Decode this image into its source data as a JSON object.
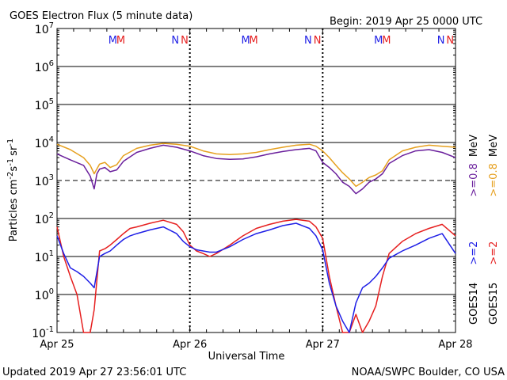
{
  "chart_data": {
    "type": "line",
    "title": "GOES Electron Flux (5 minute data)",
    "begin_label": "Begin: 2019 Apr 25 0000 UTC",
    "xlabel": "Universal Time",
    "ylabel_main": "Particles cm",
    "ylabel_exp1": "-2",
    "ylabel_mid1": "s",
    "ylabel_exp2": "-1",
    "ylabel_mid2": "sr",
    "ylabel_exp3": "-1",
    "yscale": "log",
    "ylim": [
      0.1,
      10000000
    ],
    "ytick_base": "10",
    "ytick_exps": [
      "7",
      "6",
      "5",
      "4",
      "3",
      "2",
      "1",
      "0",
      "-1"
    ],
    "x_ticks": [
      "Apr 25",
      "Apr 26",
      "Apr 27",
      "Apr 28"
    ],
    "xlim_days": [
      0,
      3
    ],
    "markers": [
      {
        "letter": "M",
        "satellite": "GOES14",
        "color": "#1f1fe6",
        "day": 0.42
      },
      {
        "letter": "M",
        "satellite": "GOES15",
        "color": "#e61f1f",
        "day": 0.48
      },
      {
        "letter": "N",
        "satellite": "GOES14",
        "color": "#1f1fe6",
        "day": 0.89
      },
      {
        "letter": "N",
        "satellite": "GOES15",
        "color": "#e61f1f",
        "day": 0.96
      },
      {
        "letter": "M",
        "satellite": "GOES14",
        "color": "#1f1fe6",
        "day": 1.42
      },
      {
        "letter": "M",
        "satellite": "GOES15",
        "color": "#e61f1f",
        "day": 1.48
      },
      {
        "letter": "N",
        "satellite": "GOES14",
        "color": "#1f1fe6",
        "day": 1.89
      },
      {
        "letter": "N",
        "satellite": "GOES15",
        "color": "#e61f1f",
        "day": 1.96
      },
      {
        "letter": "M",
        "satellite": "GOES14",
        "color": "#1f1fe6",
        "day": 2.42
      },
      {
        "letter": "M",
        "satellite": "GOES15",
        "color": "#e61f1f",
        "day": 2.48
      },
      {
        "letter": "N",
        "satellite": "GOES14",
        "color": "#1f1fe6",
        "day": 2.89
      },
      {
        "letter": "N",
        "satellite": "GOES15",
        "color": "#e61f1f",
        "day": 2.96
      }
    ],
    "legend": [
      {
        "text": "GOES14",
        "color": "#000000",
        "placement": "bottom-right"
      },
      {
        "text": ">=2",
        "color": "#1f1fe6"
      },
      {
        "text": ">=0.8",
        "color": "#6a1f9c"
      },
      {
        "text": "MeV",
        "color": "#000000"
      },
      {
        "text": "GOES15",
        "color": "#000000"
      },
      {
        "text": ">=2",
        "color": "#e61f1f"
      },
      {
        "text": ">=0.8",
        "color": "#e6a01f"
      },
      {
        "text": "MeV",
        "color": "#000000"
      }
    ],
    "series": [
      {
        "name": "GOES15 >=0.8 MeV",
        "color": "#e6a01f",
        "x": [
          0,
          0.1,
          0.2,
          0.25,
          0.28,
          0.32,
          0.36,
          0.4,
          0.45,
          0.5,
          0.6,
          0.7,
          0.8,
          0.9,
          1.0,
          1.1,
          1.2,
          1.3,
          1.4,
          1.5,
          1.6,
          1.7,
          1.8,
          1.9,
          1.95,
          2.0,
          2.05,
          2.1,
          2.15,
          2.2,
          2.25,
          2.3,
          2.35,
          2.4,
          2.45,
          2.5,
          2.6,
          2.7,
          2.8,
          2.9,
          3.0
        ],
        "y": [
          9000,
          6500,
          4000,
          2500,
          1500,
          2700,
          3000,
          2200,
          2600,
          4500,
          7000,
          8500,
          9500,
          9000,
          8000,
          6000,
          5000,
          4800,
          5000,
          5500,
          6500,
          7500,
          8500,
          9000,
          8000,
          6000,
          4000,
          2500,
          1600,
          1100,
          700,
          900,
          1200,
          1400,
          1800,
          3500,
          6000,
          7500,
          8500,
          8000,
          7500
        ]
      },
      {
        "name": "GOES14 >=0.8 MeV",
        "color": "#6a1f9c",
        "x": [
          0,
          0.1,
          0.2,
          0.25,
          0.28,
          0.3,
          0.32,
          0.36,
          0.4,
          0.45,
          0.5,
          0.6,
          0.7,
          0.8,
          0.9,
          1.0,
          1.1,
          1.2,
          1.3,
          1.4,
          1.5,
          1.6,
          1.7,
          1.8,
          1.9,
          1.95,
          2.0,
          2.05,
          2.1,
          2.15,
          2.2,
          2.25,
          2.3,
          2.35,
          2.4,
          2.45,
          2.5,
          2.6,
          2.7,
          2.8,
          2.9,
          3.0
        ],
        "y": [
          5000,
          3500,
          2500,
          1300,
          600,
          1500,
          2000,
          2200,
          1700,
          1900,
          3200,
          5500,
          7000,
          8500,
          7500,
          6000,
          4500,
          3800,
          3600,
          3700,
          4200,
          5000,
          5800,
          6500,
          7000,
          6000,
          3000,
          2200,
          1500,
          900,
          700,
          450,
          600,
          900,
          1100,
          1500,
          2800,
          4500,
          6000,
          6500,
          5500,
          4000
        ]
      },
      {
        "name": "GOES15 >=2 MeV",
        "color": "#e61f1f",
        "x": [
          0,
          0.05,
          0.1,
          0.15,
          0.2,
          0.25,
          0.28,
          0.32,
          0.36,
          0.4,
          0.45,
          0.5,
          0.55,
          0.6,
          0.7,
          0.8,
          0.9,
          0.95,
          1.0,
          1.05,
          1.1,
          1.15,
          1.2,
          1.3,
          1.4,
          1.5,
          1.6,
          1.7,
          1.8,
          1.9,
          1.95,
          2.0,
          2.05,
          2.1,
          2.15,
          2.2,
          2.25,
          2.3,
          2.35,
          2.4,
          2.45,
          2.5,
          2.6,
          2.7,
          2.8,
          2.9,
          3.0
        ],
        "y": [
          60,
          10,
          3,
          1,
          0.1,
          0.1,
          0.4,
          14,
          16,
          20,
          28,
          40,
          55,
          60,
          75,
          90,
          70,
          45,
          20,
          14,
          12,
          10,
          12,
          20,
          35,
          55,
          70,
          85,
          95,
          85,
          60,
          30,
          3,
          0.5,
          0.1,
          0.1,
          0.3,
          0.1,
          0.2,
          0.5,
          3,
          12,
          25,
          40,
          55,
          70,
          35
        ]
      },
      {
        "name": "GOES14 >=2 MeV",
        "color": "#1f1fe6",
        "x": [
          0,
          0.05,
          0.1,
          0.15,
          0.2,
          0.25,
          0.28,
          0.32,
          0.36,
          0.4,
          0.45,
          0.5,
          0.55,
          0.6,
          0.7,
          0.8,
          0.9,
          0.95,
          1.0,
          1.05,
          1.1,
          1.15,
          1.2,
          1.3,
          1.4,
          1.5,
          1.6,
          1.7,
          1.8,
          1.9,
          1.95,
          2.0,
          2.05,
          2.1,
          2.15,
          2.2,
          2.25,
          2.3,
          2.35,
          2.4,
          2.45,
          2.5,
          2.6,
          2.7,
          2.8,
          2.9,
          3.0
        ],
        "y": [
          35,
          12,
          5,
          4,
          3,
          2,
          1.5,
          10,
          12,
          14,
          20,
          28,
          35,
          40,
          50,
          60,
          40,
          25,
          18,
          15,
          14,
          13,
          13,
          18,
          28,
          40,
          50,
          65,
          75,
          55,
          35,
          15,
          2,
          0.5,
          0.2,
          0.1,
          0.6,
          1.5,
          2,
          3,
          5,
          9,
          14,
          20,
          30,
          40,
          12
        ]
      }
    ]
  },
  "footer": {
    "updated": "Updated 2019 Apr 27 23:56:01 UTC",
    "credit": "NOAA/SWPC Boulder, CO USA"
  }
}
